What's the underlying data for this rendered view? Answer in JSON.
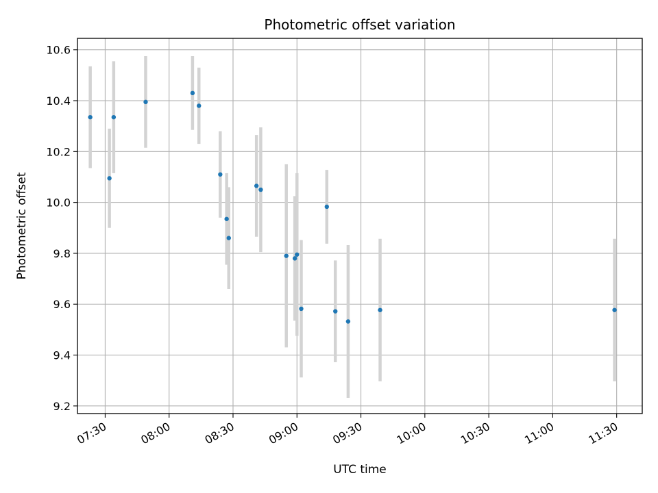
{
  "chart_data": {
    "type": "scatter",
    "title": "Photometric offset variation",
    "xlabel": "UTC time",
    "ylabel": "Photometric offset",
    "xlim": [
      "07:17",
      "11:42"
    ],
    "ylim": [
      9.17,
      10.645
    ],
    "x_ticks": [
      "07:30",
      "08:00",
      "08:30",
      "09:00",
      "09:30",
      "10:00",
      "10:30",
      "11:00",
      "11:30"
    ],
    "y_ticks": [
      "9.2",
      "9.4",
      "9.6",
      "9.8",
      "10.0",
      "10.2",
      "10.4",
      "10.6"
    ],
    "grid": true,
    "colors": {
      "point": "#1f77b4",
      "errorbar": "#d3d3d3",
      "grid": "#b0b0b0"
    },
    "points": [
      {
        "x": "07:23",
        "y": 10.335,
        "err": 0.2
      },
      {
        "x": "07:32",
        "y": 10.095,
        "err": 0.195
      },
      {
        "x": "07:34",
        "y": 10.335,
        "err": 0.22
      },
      {
        "x": "07:49",
        "y": 10.395,
        "err": 0.18
      },
      {
        "x": "08:11",
        "y": 10.43,
        "err": 0.145
      },
      {
        "x": "08:14",
        "y": 10.38,
        "err": 0.15
      },
      {
        "x": "08:24",
        "y": 10.11,
        "err": 0.17
      },
      {
        "x": "08:27",
        "y": 9.935,
        "err": 0.18
      },
      {
        "x": "08:28",
        "y": 9.86,
        "err": 0.2
      },
      {
        "x": "08:41",
        "y": 10.065,
        "err": 0.2
      },
      {
        "x": "08:43",
        "y": 10.05,
        "err": 0.245
      },
      {
        "x": "08:55",
        "y": 9.79,
        "err": 0.36
      },
      {
        "x": "08:59",
        "y": 9.78,
        "err": 0.245
      },
      {
        "x": "09:00",
        "y": 9.795,
        "err": 0.32
      },
      {
        "x": "09:02",
        "y": 9.582,
        "err": 0.27
      },
      {
        "x": "09:14",
        "y": 9.983,
        "err": 0.145
      },
      {
        "x": "09:18",
        "y": 9.572,
        "err": 0.2
      },
      {
        "x": "09:24",
        "y": 9.532,
        "err": 0.3
      },
      {
        "x": "09:39",
        "y": 9.577,
        "err": 0.28
      },
      {
        "x": "11:29",
        "y": 9.577,
        "err": 0.28
      }
    ]
  }
}
